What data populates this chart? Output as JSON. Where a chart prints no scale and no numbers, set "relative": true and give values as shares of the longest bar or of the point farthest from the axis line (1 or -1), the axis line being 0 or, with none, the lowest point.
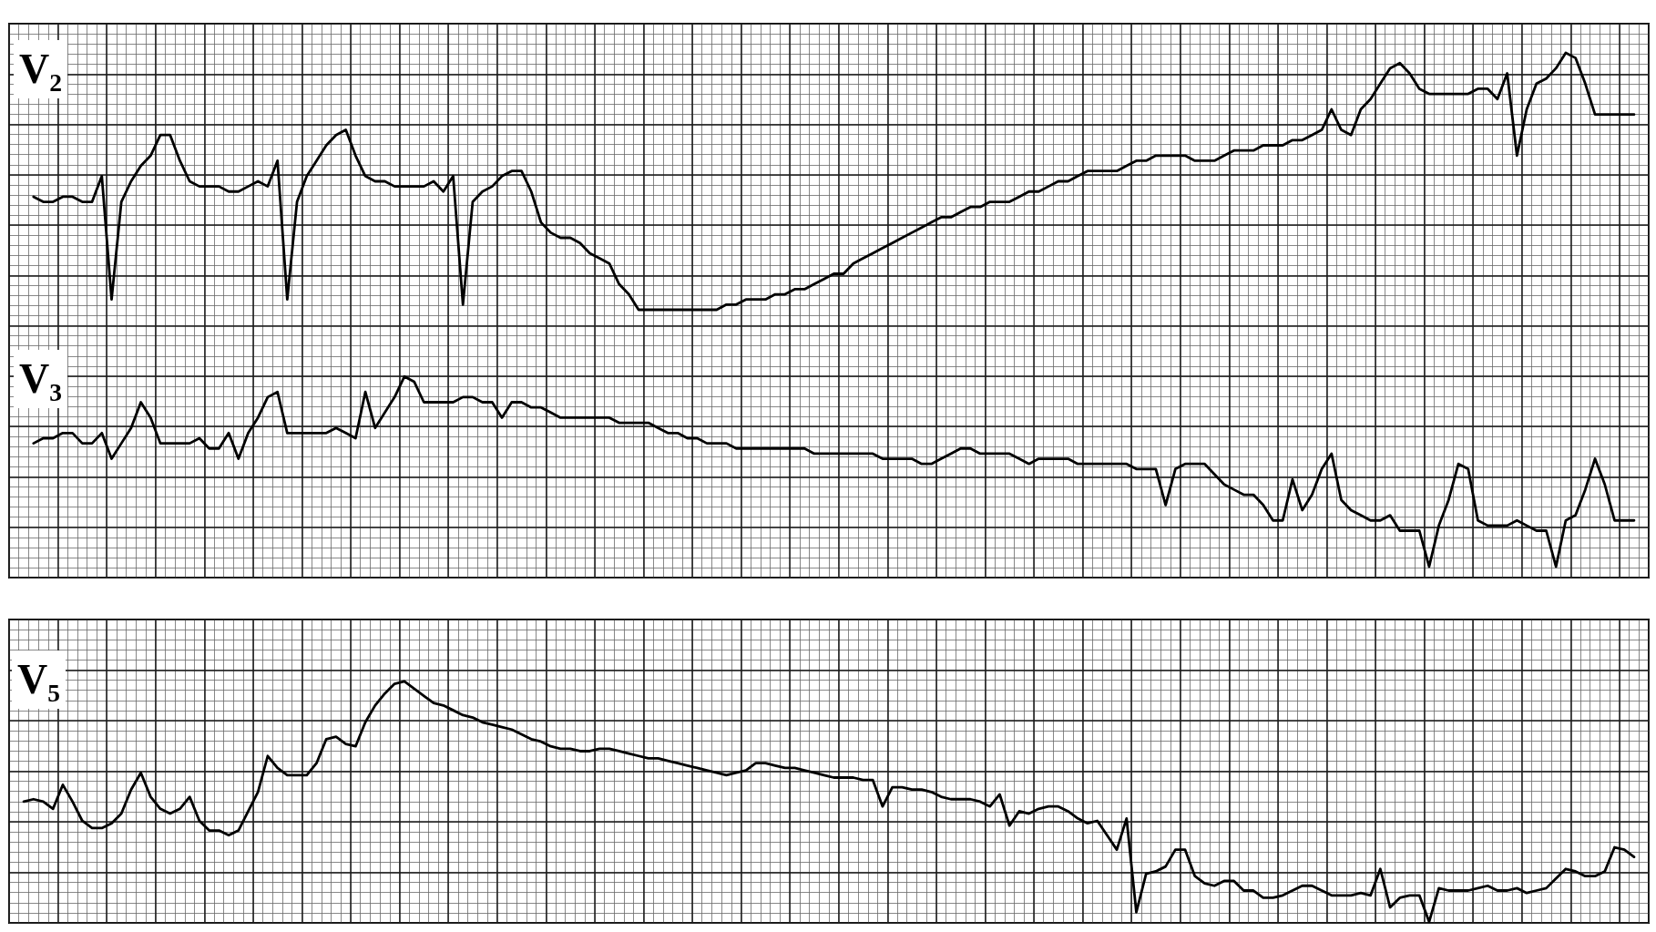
{
  "chart_data": [
    {
      "type": "line",
      "relative": true,
      "grid": true,
      "marker": "none",
      "line_style": "solid",
      "categories": [
        null,
        null,
        null,
        null,
        null,
        null,
        null,
        null,
        null,
        null,
        null,
        null,
        null,
        null,
        null,
        null,
        null,
        null,
        null,
        null,
        null,
        null,
        null,
        null,
        null,
        null,
        null,
        null,
        null,
        null,
        null,
        null,
        null,
        null,
        null,
        null,
        null,
        null,
        null,
        null,
        null,
        null,
        null,
        null,
        null,
        null,
        null,
        null,
        null,
        null,
        null,
        null,
        null,
        null,
        null,
        null,
        null,
        null,
        null,
        null,
        null,
        null,
        null,
        null,
        null,
        null,
        null,
        null,
        null,
        null,
        null,
        null,
        null,
        null,
        null,
        null,
        null,
        null,
        null,
        null,
        null,
        null,
        null,
        null,
        null,
        null,
        null,
        null,
        null,
        null,
        null,
        null,
        null,
        null,
        null,
        null,
        null,
        null,
        null,
        null,
        null,
        null,
        null,
        null,
        null,
        null,
        null,
        null,
        null,
        null,
        null,
        null,
        null,
        null,
        null,
        null,
        null,
        null,
        null,
        null,
        null,
        null,
        null,
        null,
        null,
        null,
        null,
        null,
        null,
        null,
        null,
        null,
        null,
        null,
        null,
        null,
        null,
        null,
        null,
        null,
        null,
        null,
        null,
        null,
        null,
        null,
        null,
        null,
        null,
        null,
        null,
        null,
        null,
        null,
        null,
        null,
        null,
        null,
        null,
        null,
        null,
        null,
        null,
        null,
        null,
        null,
        null,
        null
      ],
      "series": [
        {
          "name": "V₂",
          "color": "#000000",
          "values": [
            null,
            null,
            0.72,
            0.71,
            0.71,
            0.72,
            0.72,
            0.71,
            0.71,
            0.76,
            0.52,
            0.71,
            0.75,
            0.78,
            0.8,
            0.84,
            0.84,
            0.79,
            0.75,
            0.74,
            0.74,
            0.74,
            0.73,
            0.73,
            0.74,
            0.75,
            0.74,
            0.79,
            0.52,
            0.71,
            0.76,
            0.79,
            0.82,
            0.84,
            0.85,
            0.8,
            0.76,
            0.75,
            0.75,
            0.74,
            0.74,
            0.74,
            0.74,
            0.75,
            0.73,
            0.76,
            0.51,
            0.71,
            0.73,
            0.74,
            0.76,
            0.77,
            0.77,
            0.73,
            0.67,
            0.65,
            0.64,
            0.64,
            0.63,
            0.61,
            0.6,
            0.59,
            0.55,
            0.53,
            0.5,
            0.5,
            0.5,
            0.5,
            0.5,
            0.5,
            0.5,
            0.5,
            0.5,
            0.51,
            0.51,
            0.52,
            0.52,
            0.52,
            0.53,
            0.53,
            0.54,
            0.54,
            0.55,
            0.56,
            0.57,
            0.57,
            0.59,
            0.6,
            0.61,
            0.62,
            0.63,
            0.64,
            0.65,
            0.66,
            0.67,
            0.68,
            0.68,
            0.69,
            0.7,
            0.7,
            0.71,
            0.71,
            0.71,
            0.72,
            0.73,
            0.73,
            0.74,
            0.75,
            0.75,
            0.76,
            0.77,
            0.77,
            0.77,
            0.77,
            0.78,
            0.79,
            0.79,
            0.8,
            0.8,
            0.8,
            0.8,
            0.79,
            0.79,
            0.79,
            0.8,
            0.81,
            0.81,
            0.81,
            0.82,
            0.82,
            0.82,
            0.83,
            0.83,
            0.84,
            0.85,
            0.89,
            0.85,
            0.84,
            0.89,
            0.91,
            0.94,
            0.97,
            0.98,
            0.96,
            0.93,
            0.92,
            0.92,
            0.92,
            0.92,
            0.92,
            0.93,
            0.93,
            0.91,
            0.96,
            0.8,
            0.89,
            0.94,
            0.95,
            0.97,
            1.0,
            0.99,
            0.94,
            0.88,
            0.88,
            0.88,
            0.88,
            0.88,
            null
          ]
        },
        {
          "name": "V₃",
          "color": "#000000",
          "values": [
            null,
            null,
            0.24,
            0.25,
            0.25,
            0.26,
            0.26,
            0.24,
            0.24,
            0.26,
            0.21,
            0.24,
            0.27,
            0.32,
            0.29,
            0.24,
            0.24,
            0.24,
            0.24,
            0.25,
            0.23,
            0.23,
            0.26,
            0.21,
            0.26,
            0.29,
            0.33,
            0.34,
            0.26,
            0.26,
            0.26,
            0.26,
            0.26,
            0.27,
            0.26,
            0.25,
            0.34,
            0.27,
            0.3,
            0.33,
            0.37,
            0.36,
            0.32,
            0.32,
            0.32,
            0.32,
            0.33,
            0.33,
            0.32,
            0.32,
            0.29,
            0.32,
            0.32,
            0.31,
            0.31,
            0.3,
            0.29,
            0.29,
            0.29,
            0.29,
            0.29,
            0.29,
            0.28,
            0.28,
            0.28,
            0.28,
            0.27,
            0.26,
            0.26,
            0.25,
            0.25,
            0.24,
            0.24,
            0.24,
            0.23,
            0.23,
            0.23,
            0.23,
            0.23,
            0.23,
            0.23,
            0.23,
            0.22,
            0.22,
            0.22,
            0.22,
            0.22,
            0.22,
            0.22,
            0.21,
            0.21,
            0.21,
            0.21,
            0.2,
            0.2,
            0.21,
            0.22,
            0.23,
            0.23,
            0.22,
            0.22,
            0.22,
            0.22,
            0.21,
            0.2,
            0.21,
            0.21,
            0.21,
            0.21,
            0.2,
            0.2,
            0.2,
            0.2,
            0.2,
            0.2,
            0.19,
            0.19,
            0.19,
            0.12,
            0.19,
            0.2,
            0.2,
            0.2,
            0.18,
            0.16,
            0.15,
            0.14,
            0.14,
            0.12,
            0.09,
            0.09,
            0.17,
            0.11,
            0.14,
            0.19,
            0.22,
            0.13,
            0.11,
            0.1,
            0.09,
            0.09,
            0.1,
            0.07,
            0.07,
            0.07,
            0.0,
            0.08,
            0.13,
            0.2,
            0.19,
            0.09,
            0.08,
            0.08,
            0.08,
            0.09,
            0.08,
            0.07,
            0.07,
            0.0,
            0.09,
            0.1,
            0.15,
            0.21,
            0.16,
            0.09,
            0.09,
            0.09,
            null
          ]
        }
      ]
    },
    {
      "type": "line",
      "relative": true,
      "grid": true,
      "marker": "none",
      "line_style": "solid",
      "categories": [
        null,
        null,
        null,
        null,
        null,
        null,
        null,
        null,
        null,
        null,
        null,
        null,
        null,
        null,
        null,
        null,
        null,
        null,
        null,
        null,
        null,
        null,
        null,
        null,
        null,
        null,
        null,
        null,
        null,
        null,
        null,
        null,
        null,
        null,
        null,
        null,
        null,
        null,
        null,
        null,
        null,
        null,
        null,
        null,
        null,
        null,
        null,
        null,
        null,
        null,
        null,
        null,
        null,
        null,
        null,
        null,
        null,
        null,
        null,
        null,
        null,
        null,
        null,
        null,
        null,
        null,
        null,
        null,
        null,
        null,
        null,
        null,
        null,
        null,
        null,
        null,
        null,
        null,
        null,
        null,
        null,
        null,
        null,
        null,
        null,
        null,
        null,
        null,
        null,
        null,
        null,
        null,
        null,
        null,
        null,
        null,
        null,
        null,
        null,
        null,
        null,
        null,
        null,
        null,
        null,
        null,
        null,
        null,
        null,
        null,
        null,
        null,
        null,
        null,
        null,
        null,
        null,
        null,
        null,
        null,
        null,
        null,
        null,
        null,
        null,
        null,
        null,
        null,
        null,
        null,
        null,
        null,
        null,
        null,
        null,
        null,
        null,
        null,
        null,
        null,
        null,
        null,
        null,
        null,
        null,
        null,
        null,
        null,
        null,
        null,
        null,
        null,
        null,
        null,
        null,
        null,
        null,
        null,
        null,
        null,
        null,
        null,
        null,
        null,
        null,
        null,
        null,
        null
      ],
      "series": [
        {
          "name": "V₅",
          "color": "#000000",
          "values": [
            null,
            0.5,
            0.51,
            0.5,
            0.47,
            0.57,
            0.5,
            0.42,
            0.39,
            0.39,
            0.41,
            0.45,
            0.55,
            0.62,
            0.52,
            0.47,
            0.45,
            0.47,
            0.52,
            0.42,
            0.38,
            0.38,
            0.36,
            0.38,
            0.46,
            0.54,
            0.69,
            0.64,
            0.61,
            0.61,
            0.61,
            0.66,
            0.76,
            0.77,
            0.74,
            0.73,
            0.83,
            0.9,
            0.95,
            0.99,
            1.0,
            0.97,
            0.94,
            0.91,
            0.9,
            0.88,
            0.86,
            0.85,
            0.83,
            0.82,
            0.81,
            0.8,
            0.78,
            0.76,
            0.75,
            0.73,
            0.72,
            0.72,
            0.71,
            0.71,
            0.72,
            0.72,
            0.71,
            0.7,
            0.69,
            0.68,
            0.68,
            0.67,
            0.66,
            0.65,
            0.64,
            0.63,
            0.62,
            0.61,
            0.62,
            0.63,
            0.66,
            0.66,
            0.65,
            0.64,
            0.64,
            0.63,
            0.62,
            0.61,
            0.6,
            0.6,
            0.6,
            0.59,
            0.59,
            0.48,
            0.56,
            0.56,
            0.55,
            0.55,
            0.54,
            0.52,
            0.51,
            0.51,
            0.51,
            0.5,
            0.48,
            0.53,
            0.4,
            0.46,
            0.45,
            0.47,
            0.48,
            0.48,
            0.46,
            0.43,
            0.41,
            0.42,
            0.36,
            0.3,
            0.43,
            0.04,
            0.2,
            0.21,
            0.23,
            0.3,
            0.3,
            0.19,
            0.16,
            0.15,
            0.17,
            0.17,
            0.13,
            0.13,
            0.1,
            0.1,
            0.11,
            0.13,
            0.15,
            0.15,
            0.13,
            0.11,
            0.11,
            0.11,
            0.12,
            0.11,
            0.22,
            0.06,
            0.1,
            0.11,
            0.11,
            0.0,
            0.14,
            0.13,
            0.13,
            0.13,
            0.14,
            0.15,
            0.13,
            0.13,
            0.14,
            0.12,
            0.13,
            0.14,
            0.18,
            0.22,
            0.21,
            0.19,
            0.19,
            0.21,
            0.31,
            0.3,
            0.27,
            null
          ]
        }
      ]
    }
  ]
}
